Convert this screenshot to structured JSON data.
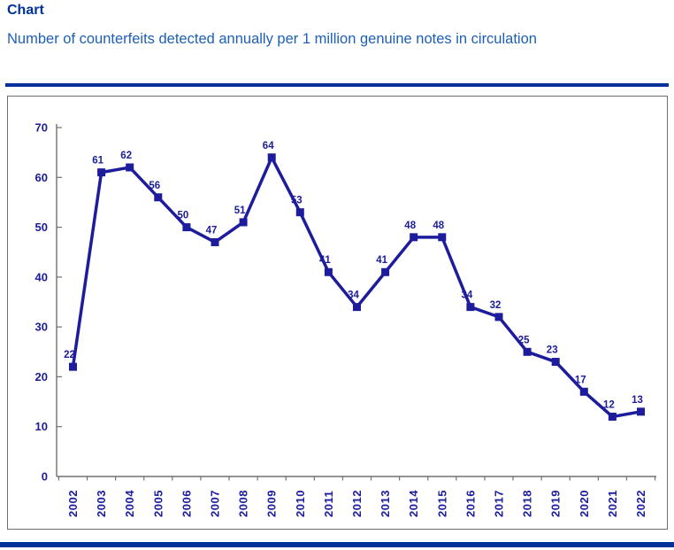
{
  "header": {
    "title": "Chart",
    "subtitle": "Number of counterfeits detected annually per 1 million genuine notes in circulation"
  },
  "colors": {
    "title": "#003299",
    "subtitle": "#1D5FB5",
    "separator": "#003299",
    "chart_border": "#6e6e6e",
    "axis": "#707070",
    "series": "#1C1C9C"
  },
  "chart_data": {
    "type": "line",
    "title": "Number of counterfeits detected annually per 1 million genuine notes in circulation",
    "categories": [
      "2002",
      "2003",
      "2004",
      "2005",
      "2006",
      "2007",
      "2008",
      "2009",
      "2010",
      "2011",
      "2012",
      "2013",
      "2014",
      "2015",
      "2016",
      "2017",
      "2018",
      "2019",
      "2020",
      "2021",
      "2022"
    ],
    "values": [
      22,
      61,
      62,
      56,
      50,
      47,
      51,
      64,
      53,
      41,
      34,
      41,
      48,
      48,
      34,
      32,
      25,
      23,
      17,
      12,
      13
    ],
    "xlabel": "",
    "ylabel": "",
    "ylim": [
      0,
      70
    ],
    "yticks": [
      0,
      10,
      20,
      30,
      40,
      50,
      60,
      70
    ],
    "grid": false,
    "legend": false,
    "marker": "square",
    "data_labels": true,
    "x_tick_label_rotation": 90
  }
}
